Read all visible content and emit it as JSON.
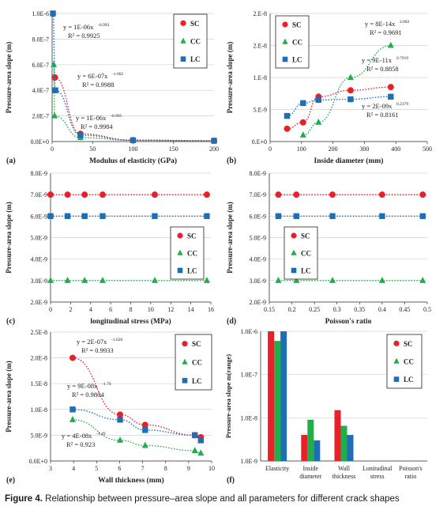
{
  "caption": {
    "bold": "Figure 4.",
    "text": " Relationship between pressure–area slope and all parameters for different crack shapes"
  },
  "colors": {
    "SC": "#e8202a",
    "CC": "#22ad4b",
    "LC": "#1f6db4"
  },
  "legend_labels": [
    "SC",
    "CC",
    "LC"
  ],
  "chart_data": [
    {
      "panel": "(a)",
      "type": "scatter",
      "xlabel": "Modulus of elasticity (GPa)",
      "ylabel": "Pressure-area slope (m)",
      "xlim": [
        0,
        200
      ],
      "ylim": [
        0,
        1e-06
      ],
      "xticks": [
        "0",
        "50",
        "100",
        "150",
        "200"
      ],
      "yticks": [
        "0.0E+0",
        "2.0E-7",
        "4.0E-7",
        "6.0E-7",
        "8.0E-7",
        "1.0E-6"
      ],
      "series": [
        {
          "name": "SC",
          "x": [
            3,
            3.5,
            35,
            100,
            200
          ],
          "y": [
            5e-07,
            5e-07,
            6e-08,
            1e-08,
            6e-09
          ]
        },
        {
          "name": "CC",
          "x": [
            2,
            3,
            35,
            100,
            200
          ],
          "y": [
            6e-07,
            2e-07,
            3e-08,
            1e-08,
            6e-09
          ]
        },
        {
          "name": "LC",
          "x": [
            1,
            4,
            35,
            100,
            200
          ],
          "y": [
            1e-06,
            4e-07,
            5e-08,
            1e-08,
            6e-09
          ]
        }
      ],
      "annotations": [
        {
          "eq": "y = 1E-06x",
          "exp": "-0.993",
          "r2": "R² = 0.9925"
        },
        {
          "eq": "y = 6E-07x",
          "exp": "-1.002",
          "r2": "R² = 0.9988"
        },
        {
          "eq": "y = 1E-06x",
          "exp": "-0.995",
          "r2": "R² = 0.9984"
        }
      ]
    },
    {
      "panel": "(b)",
      "type": "scatter",
      "xlabel": "Inside diameter (mm)",
      "ylabel": "Pressure-area slope (m)",
      "xlim": [
        0,
        500
      ],
      "ylim": [
        0,
        2e-08
      ],
      "xticks": [
        "0",
        "100",
        "200",
        "300",
        "400",
        "500"
      ],
      "yticks": [
        "0.E+0",
        "5.E-9",
        "1.E-8",
        "2.E-8",
        "2.E-8"
      ],
      "series": [
        {
          "name": "SC",
          "x": [
            54,
            105,
            154,
            256,
            384
          ],
          "y": [
            2e-09,
            3e-09,
            7e-09,
            8e-09,
            8.5e-09
          ]
        },
        {
          "name": "CC",
          "x": [
            105,
            154,
            256,
            384
          ],
          "y": [
            1e-09,
            3e-09,
            1e-08,
            1.5e-08
          ]
        },
        {
          "name": "LC",
          "x": [
            54,
            105,
            154,
            256,
            384
          ],
          "y": [
            4e-09,
            6e-09,
            6.5e-09,
            6.6e-09,
            7e-09
          ]
        }
      ],
      "annotations": [
        {
          "eq": "y = 8E-14x",
          "exp": "2.082",
          "r2": "R² = 0.9691"
        },
        {
          "eq": "y = 9E-11x",
          "exp": "0.7919",
          "r2": "R² = 0.8858"
        },
        {
          "eq": "y = 2E-09x",
          "exp": "0.2379",
          "r2": "R² = 0.8161"
        }
      ]
    },
    {
      "panel": "(c)",
      "type": "line",
      "xlabel": "longitudinal stress (MPa)",
      "ylabel": "Pressure-area slope (m)",
      "xlim": [
        0,
        16
      ],
      "ylim": [
        2e-09,
        8e-09
      ],
      "xticks": [
        "0",
        "2",
        "4",
        "6",
        "8",
        "10",
        "12",
        "14",
        "16"
      ],
      "yticks": [
        "2.0E-9",
        "3.0E-9",
        "4.0E-9",
        "5.0E-9",
        "6.0E-9",
        "7.0E-9",
        "8.0E-9"
      ],
      "series": [
        {
          "name": "SC",
          "x": [
            0,
            1.7,
            3.4,
            5.2,
            10.4,
            15.6
          ],
          "y": [
            7e-09,
            7e-09,
            7e-09,
            7e-09,
            7e-09,
            7e-09
          ]
        },
        {
          "name": "CC",
          "x": [
            0,
            1.7,
            3.4,
            5.2,
            10.4,
            15.6
          ],
          "y": [
            3e-09,
            3e-09,
            3e-09,
            3e-09,
            3e-09,
            3e-09
          ]
        },
        {
          "name": "LC",
          "x": [
            0,
            1.7,
            3.4,
            5.2,
            10.4,
            15.6
          ],
          "y": [
            6e-09,
            6e-09,
            6e-09,
            6e-09,
            6e-09,
            6e-09
          ]
        }
      ]
    },
    {
      "panel": "(d)",
      "type": "line",
      "xlabel": "Poisson's ratio",
      "ylabel": "Pressure-area slope (m)",
      "xlim": [
        0.15,
        0.5
      ],
      "ylim": [
        2e-09,
        8e-09
      ],
      "xticks": [
        "0.15",
        "0.2",
        "0.25",
        "0.3",
        "0.35",
        "0.4",
        "0.45",
        "0.5"
      ],
      "yticks": [
        "2.0E-9",
        "3.0E-9",
        "4.0E-9",
        "5.0E-9",
        "6.0E-9",
        "7.0E-9",
        "8.0E-9"
      ],
      "series": [
        {
          "name": "SC",
          "x": [
            0.17,
            0.21,
            0.29,
            0.4,
            0.49
          ],
          "y": [
            7e-09,
            7e-09,
            7e-09,
            7e-09,
            7e-09
          ]
        },
        {
          "name": "CC",
          "x": [
            0.17,
            0.21,
            0.29,
            0.4,
            0.49
          ],
          "y": [
            3e-09,
            3e-09,
            3e-09,
            3e-09,
            3e-09
          ]
        },
        {
          "name": "LC",
          "x": [
            0.17,
            0.21,
            0.29,
            0.4,
            0.49
          ],
          "y": [
            6e-09,
            6e-09,
            6e-09,
            6e-09,
            6e-09
          ]
        }
      ]
    },
    {
      "panel": "(e)",
      "type": "scatter",
      "xlabel": "Wall thickness (mm)",
      "ylabel": "Pressure-area slope (m)",
      "xlim": [
        3,
        10
      ],
      "ylim": [
        0,
        2.5e-08
      ],
      "xticks": [
        "3",
        "4",
        "5",
        "6",
        "7",
        "8",
        "9",
        "10"
      ],
      "yticks": [
        "0.0E+0",
        "5.0E-9",
        "1.0E-8",
        "1.5E-8",
        "2.0E-8",
        "2.5E-8"
      ],
      "series": [
        {
          "name": "SC",
          "x": [
            3.96,
            6.02,
            7.11,
            9.27,
            9.53
          ],
          "y": [
            2e-08,
            9e-09,
            7e-09,
            5e-09,
            4.6e-09
          ]
        },
        {
          "name": "CC",
          "x": [
            3.96,
            6.02,
            7.11,
            9.27,
            9.53
          ],
          "y": [
            8e-09,
            4e-09,
            3e-09,
            2e-09,
            1.5e-09
          ]
        },
        {
          "name": "LC",
          "x": [
            3.96,
            6.02,
            7.11,
            9.27,
            9.53
          ],
          "y": [
            1e-08,
            8e-09,
            6e-09,
            5e-09,
            4e-09
          ]
        }
      ],
      "annotations": [
        {
          "eq": "y = 2E-07x",
          "exp": "-1.626",
          "r2": "R² = 0.9933"
        },
        {
          "eq": "y = 9E-08x",
          "exp": "-1.76",
          "r2": "R² = 0.9804"
        },
        {
          "eq": "y = 4E-08x",
          "exp": "-1.49",
          "r2": "R² = 0.923"
        }
      ]
    },
    {
      "panel": "(f)",
      "type": "bar",
      "ylabel": "Pressure-area slope m(range)",
      "yscale": "log",
      "ylim": [
        1e-09,
        1e-06
      ],
      "yticks": [
        "1.0E-9",
        "1.0E-8",
        "1.0E-7",
        "1.0E-6"
      ],
      "categories": [
        "Elasticity",
        "Inside\ndiameter",
        "Wall\nthickness",
        "Lonitudinal\nstress",
        "Poisson's\nratio"
      ],
      "series": [
        {
          "name": "SC",
          "values": [
            1e-06,
            4e-09,
            1.5e-08,
            0,
            0
          ]
        },
        {
          "name": "CC",
          "values": [
            6e-07,
            9e-09,
            6.5e-09,
            0,
            0
          ]
        },
        {
          "name": "LC",
          "values": [
            1e-06,
            3e-09,
            4e-09,
            0,
            0
          ]
        }
      ]
    }
  ]
}
